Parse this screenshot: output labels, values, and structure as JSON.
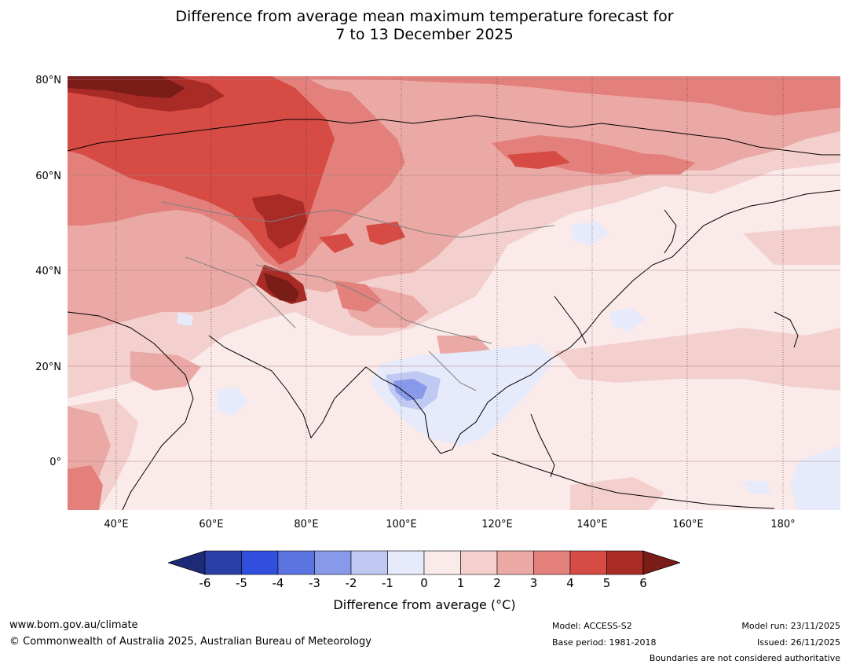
{
  "title_line1": "Difference from average mean maximum temperature forecast for",
  "title_line2": "7 to 13 December 2025",
  "map": {
    "lat_labels": [
      "80°N",
      "60°N",
      "40°N",
      "20°N",
      "0°"
    ],
    "lon_labels": [
      "40°E",
      "60°E",
      "80°E",
      "100°E",
      "120°E",
      "140°E",
      "160°E",
      "180°"
    ]
  },
  "colorbar": {
    "ticks": [
      "-6",
      "-5",
      "-4",
      "-3",
      "-2",
      "-1",
      "0",
      "1",
      "2",
      "3",
      "4",
      "5",
      "6"
    ],
    "colors": [
      "#2a3ea8",
      "#2f4fdc",
      "#5b74e2",
      "#8799e8",
      "#c0c9f2",
      "#e6eafa",
      "#fbeaea",
      "#f3cfcd",
      "#eba9a6",
      "#e3807b",
      "#d64b44",
      "#a92b26"
    ],
    "under_color": "#1e2a78",
    "over_color": "#7a1c18",
    "label": "Difference from average (°C)"
  },
  "footer": {
    "website": "www.bom.gov.au/climate",
    "copyright": "© Commonwealth of Australia 2025, Australian Bureau of Meteorology",
    "model": "Model: ACCESS-S2",
    "base_period": "Base period: 1981-2018",
    "model_run": "Model run: 23/11/2025",
    "issued": "Issued: 26/11/2025",
    "disclaimer": "Boundaries are not considered authoritative"
  }
}
